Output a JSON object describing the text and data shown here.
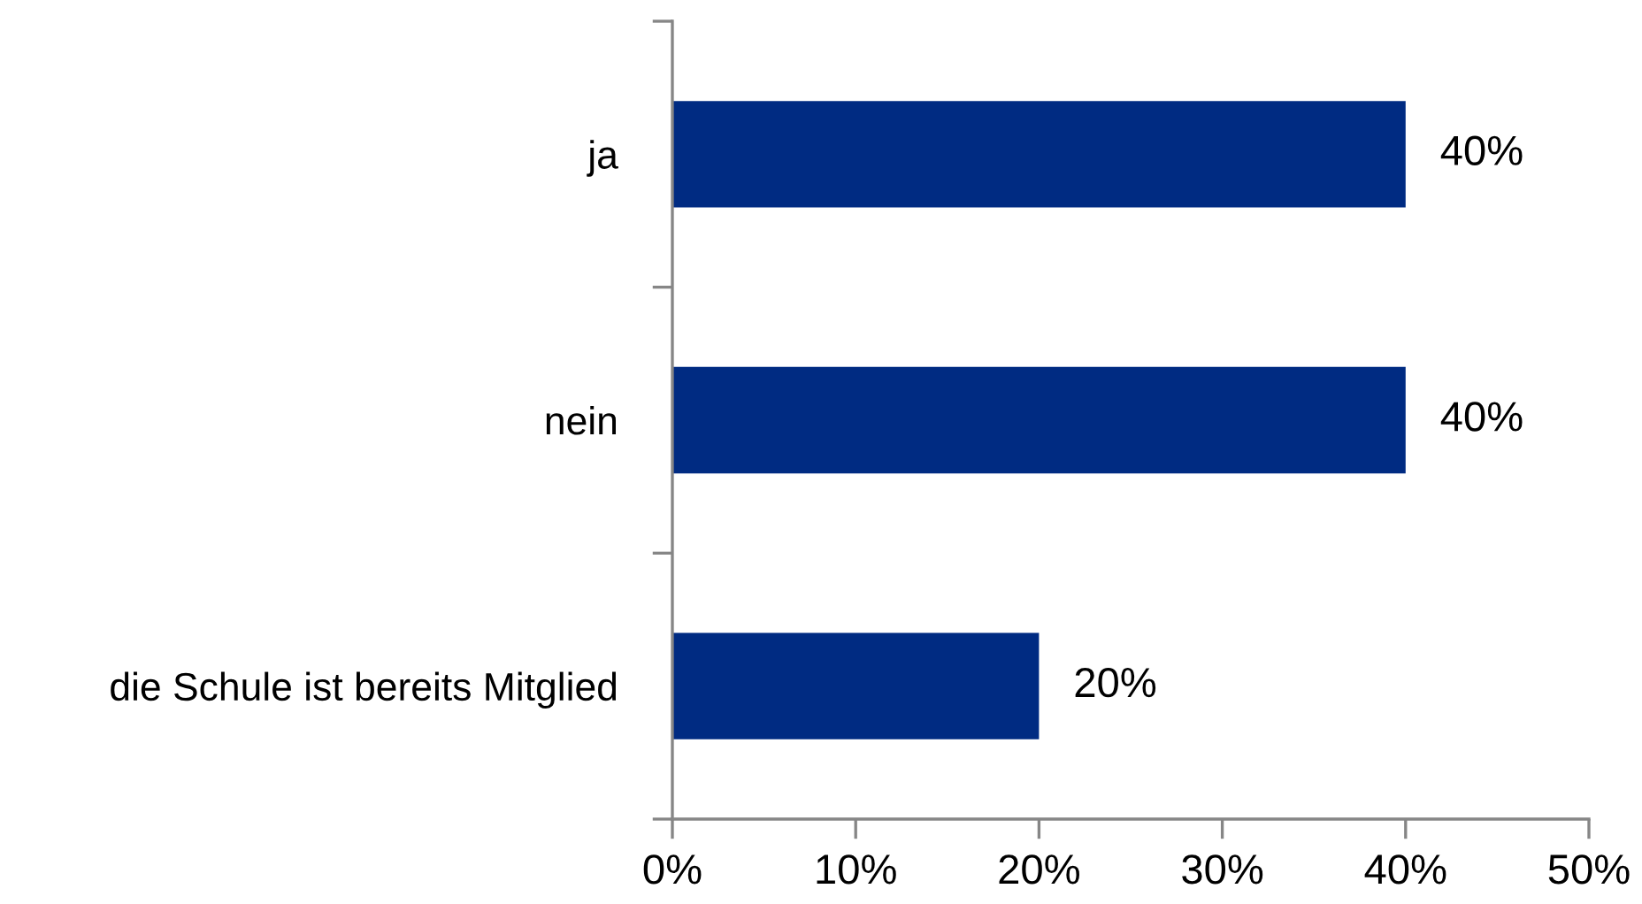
{
  "chart_data": {
    "type": "bar",
    "orientation": "horizontal",
    "categories": [
      "ja",
      "nein",
      "die Schule ist bereits Mitglied"
    ],
    "values": [
      40,
      40,
      20
    ],
    "value_labels": [
      "40%",
      "40%",
      "20%"
    ],
    "color": "#002b82",
    "xlim": [
      0,
      50
    ],
    "xticks": [
      {
        "value": 0,
        "label": "0%"
      },
      {
        "value": 10,
        "label": "10%"
      },
      {
        "value": 20,
        "label": "20%"
      },
      {
        "value": 30,
        "label": "30%"
      },
      {
        "value": 40,
        "label": "40%"
      },
      {
        "value": 50,
        "label": "50%"
      }
    ],
    "grid": false,
    "legend": false
  }
}
